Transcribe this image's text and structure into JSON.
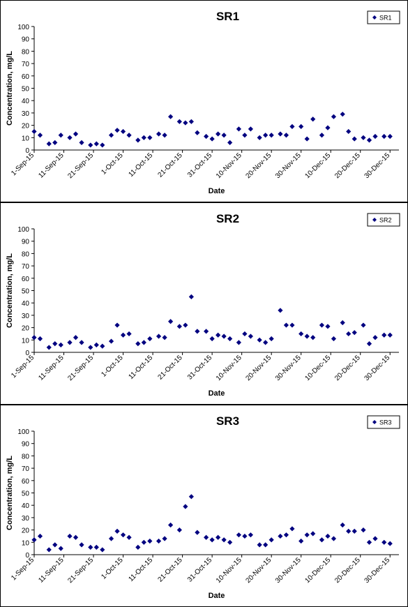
{
  "chart_data": [
    {
      "type": "scatter",
      "title": "SR1",
      "xlabel": "Date",
      "ylabel": "Concentration, mg/L",
      "ylim": [
        0,
        100
      ],
      "y_ticks": [
        0,
        10,
        20,
        30,
        40,
        50,
        60,
        70,
        80,
        90,
        100
      ],
      "x_ticks": [
        "1-Sep-15",
        "11-Sep-15",
        "21-Sep-15",
        "1-Oct-15",
        "11-Oct-15",
        "21-Oct-15",
        "31-Oct-15",
        "10-Nov-15",
        "20-Nov-15",
        "30-Nov-15",
        "10-Dec-15",
        "20-Dec-15",
        "30-Dec-15"
      ],
      "x_range": [
        "1-Sep-15",
        "2-Jan-16"
      ],
      "grid": false,
      "legend_position": "top-right",
      "marker_color": "#000080",
      "series": [
        {
          "name": "SR1",
          "x": [
            "2015-09-01",
            "2015-09-03",
            "2015-09-06",
            "2015-09-08",
            "2015-09-10",
            "2015-09-13",
            "2015-09-15",
            "2015-09-17",
            "2015-09-20",
            "2015-09-22",
            "2015-09-24",
            "2015-09-27",
            "2015-09-29",
            "2015-10-01",
            "2015-10-03",
            "2015-10-06",
            "2015-10-08",
            "2015-10-10",
            "2015-10-13",
            "2015-10-15",
            "2015-10-17",
            "2015-10-20",
            "2015-10-22",
            "2015-10-24",
            "2015-10-26",
            "2015-10-29",
            "2015-10-31",
            "2015-11-02",
            "2015-11-04",
            "2015-11-06",
            "2015-11-09",
            "2015-11-11",
            "2015-11-13",
            "2015-11-16",
            "2015-11-18",
            "2015-11-20",
            "2015-11-23",
            "2015-11-25",
            "2015-11-27",
            "2015-11-30",
            "2015-12-02",
            "2015-12-04",
            "2015-12-07",
            "2015-12-09",
            "2015-12-11",
            "2015-12-14",
            "2015-12-16",
            "2015-12-18",
            "2015-12-21",
            "2015-12-23",
            "2015-12-25",
            "2015-12-28",
            "2015-12-30"
          ],
          "y": [
            15,
            12,
            5,
            6,
            12,
            10,
            13,
            6,
            4,
            5,
            4,
            12,
            16,
            15,
            12,
            8,
            10,
            10,
            13,
            12,
            27,
            23,
            22,
            23,
            14,
            11,
            9,
            13,
            12,
            6,
            17,
            12,
            17,
            10,
            12,
            12,
            13,
            12,
            19,
            19,
            9,
            25,
            12,
            18,
            27,
            29,
            15,
            9,
            10,
            8,
            11,
            11,
            11
          ]
        }
      ]
    },
    {
      "type": "scatter",
      "title": "SR2",
      "xlabel": "Date",
      "ylabel": "Concentration, mg/L",
      "ylim": [
        0,
        100
      ],
      "y_ticks": [
        0,
        10,
        20,
        30,
        40,
        50,
        60,
        70,
        80,
        90,
        100
      ],
      "x_ticks": [
        "1-Sep-15",
        "11-Sep-15",
        "21-Sep-15",
        "1-Oct-15",
        "11-Oct-15",
        "21-Oct-15",
        "31-Oct-15",
        "10-Nov-15",
        "20-Nov-15",
        "30-Nov-15",
        "10-Dec-15",
        "20-Dec-15",
        "30-Dec-15"
      ],
      "x_range": [
        "1-Sep-15",
        "2-Jan-16"
      ],
      "grid": false,
      "legend_position": "top-right",
      "marker_color": "#000080",
      "series": [
        {
          "name": "SR2",
          "x": [
            "2015-09-01",
            "2015-09-03",
            "2015-09-06",
            "2015-09-08",
            "2015-09-10",
            "2015-09-13",
            "2015-09-15",
            "2015-09-17",
            "2015-09-20",
            "2015-09-22",
            "2015-09-24",
            "2015-09-27",
            "2015-09-29",
            "2015-10-01",
            "2015-10-03",
            "2015-10-06",
            "2015-10-08",
            "2015-10-10",
            "2015-10-13",
            "2015-10-15",
            "2015-10-17",
            "2015-10-20",
            "2015-10-22",
            "2015-10-24",
            "2015-10-26",
            "2015-10-29",
            "2015-10-31",
            "2015-11-02",
            "2015-11-04",
            "2015-11-06",
            "2015-11-09",
            "2015-11-11",
            "2015-11-13",
            "2015-11-16",
            "2015-11-18",
            "2015-11-20",
            "2015-11-23",
            "2015-11-25",
            "2015-11-27",
            "2015-11-30",
            "2015-12-02",
            "2015-12-04",
            "2015-12-07",
            "2015-12-09",
            "2015-12-11",
            "2015-12-14",
            "2015-12-16",
            "2015-12-18",
            "2015-12-21",
            "2015-12-23",
            "2015-12-25",
            "2015-12-28",
            "2015-12-30"
          ],
          "y": [
            12,
            11,
            4,
            7,
            6,
            8,
            12,
            8,
            4,
            6,
            5,
            9,
            22,
            14,
            15,
            7,
            8,
            11,
            13,
            12,
            25,
            21,
            22,
            45,
            17,
            17,
            11,
            14,
            13,
            11,
            8,
            15,
            13,
            10,
            8,
            11,
            34,
            22,
            22,
            15,
            13,
            12,
            22,
            21,
            11,
            24,
            15,
            16,
            22,
            7,
            12,
            14,
            14
          ]
        }
      ]
    },
    {
      "type": "scatter",
      "title": "SR3",
      "xlabel": "Date",
      "ylabel": "Concentration, mg/L",
      "ylim": [
        0,
        100
      ],
      "y_ticks": [
        0,
        10,
        20,
        30,
        40,
        50,
        60,
        70,
        80,
        90,
        100
      ],
      "x_ticks": [
        "1-Sep-15",
        "11-Sep-15",
        "21-Sep-15",
        "1-Oct-15",
        "11-Oct-15",
        "21-Oct-15",
        "31-Oct-15",
        "10-Nov-15",
        "20-Nov-15",
        "30-Nov-15",
        "10-Dec-15",
        "20-Dec-15",
        "30-Dec-15"
      ],
      "x_range": [
        "1-Sep-15",
        "2-Jan-16"
      ],
      "grid": false,
      "legend_position": "top-right",
      "marker_color": "#000080",
      "series": [
        {
          "name": "SR3",
          "x": [
            "2015-09-01",
            "2015-09-03",
            "2015-09-06",
            "2015-09-08",
            "2015-09-10",
            "2015-09-13",
            "2015-09-15",
            "2015-09-17",
            "2015-09-20",
            "2015-09-22",
            "2015-09-24",
            "2015-09-27",
            "2015-09-29",
            "2015-10-01",
            "2015-10-03",
            "2015-10-06",
            "2015-10-08",
            "2015-10-10",
            "2015-10-13",
            "2015-10-15",
            "2015-10-17",
            "2015-10-20",
            "2015-10-22",
            "2015-10-24",
            "2015-10-26",
            "2015-10-29",
            "2015-10-31",
            "2015-11-02",
            "2015-11-04",
            "2015-11-06",
            "2015-11-09",
            "2015-11-11",
            "2015-11-13",
            "2015-11-16",
            "2015-11-18",
            "2015-11-20",
            "2015-11-23",
            "2015-11-25",
            "2015-11-27",
            "2015-11-30",
            "2015-12-02",
            "2015-12-04",
            "2015-12-07",
            "2015-12-09",
            "2015-12-11",
            "2015-12-14",
            "2015-12-16",
            "2015-12-18",
            "2015-12-21",
            "2015-12-23",
            "2015-12-25",
            "2015-12-28",
            "2015-12-30"
          ],
          "y": [
            12,
            15,
            4,
            8,
            5,
            15,
            14,
            8,
            6,
            6,
            4,
            13,
            19,
            16,
            14,
            6,
            10,
            11,
            11,
            13,
            24,
            20,
            39,
            47,
            18,
            14,
            12,
            14,
            12,
            10,
            16,
            15,
            16,
            8,
            8,
            12,
            15,
            16,
            21,
            11,
            16,
            17,
            12,
            15,
            13,
            24,
            19,
            19,
            20,
            10,
            13,
            10,
            9
          ]
        }
      ]
    }
  ]
}
